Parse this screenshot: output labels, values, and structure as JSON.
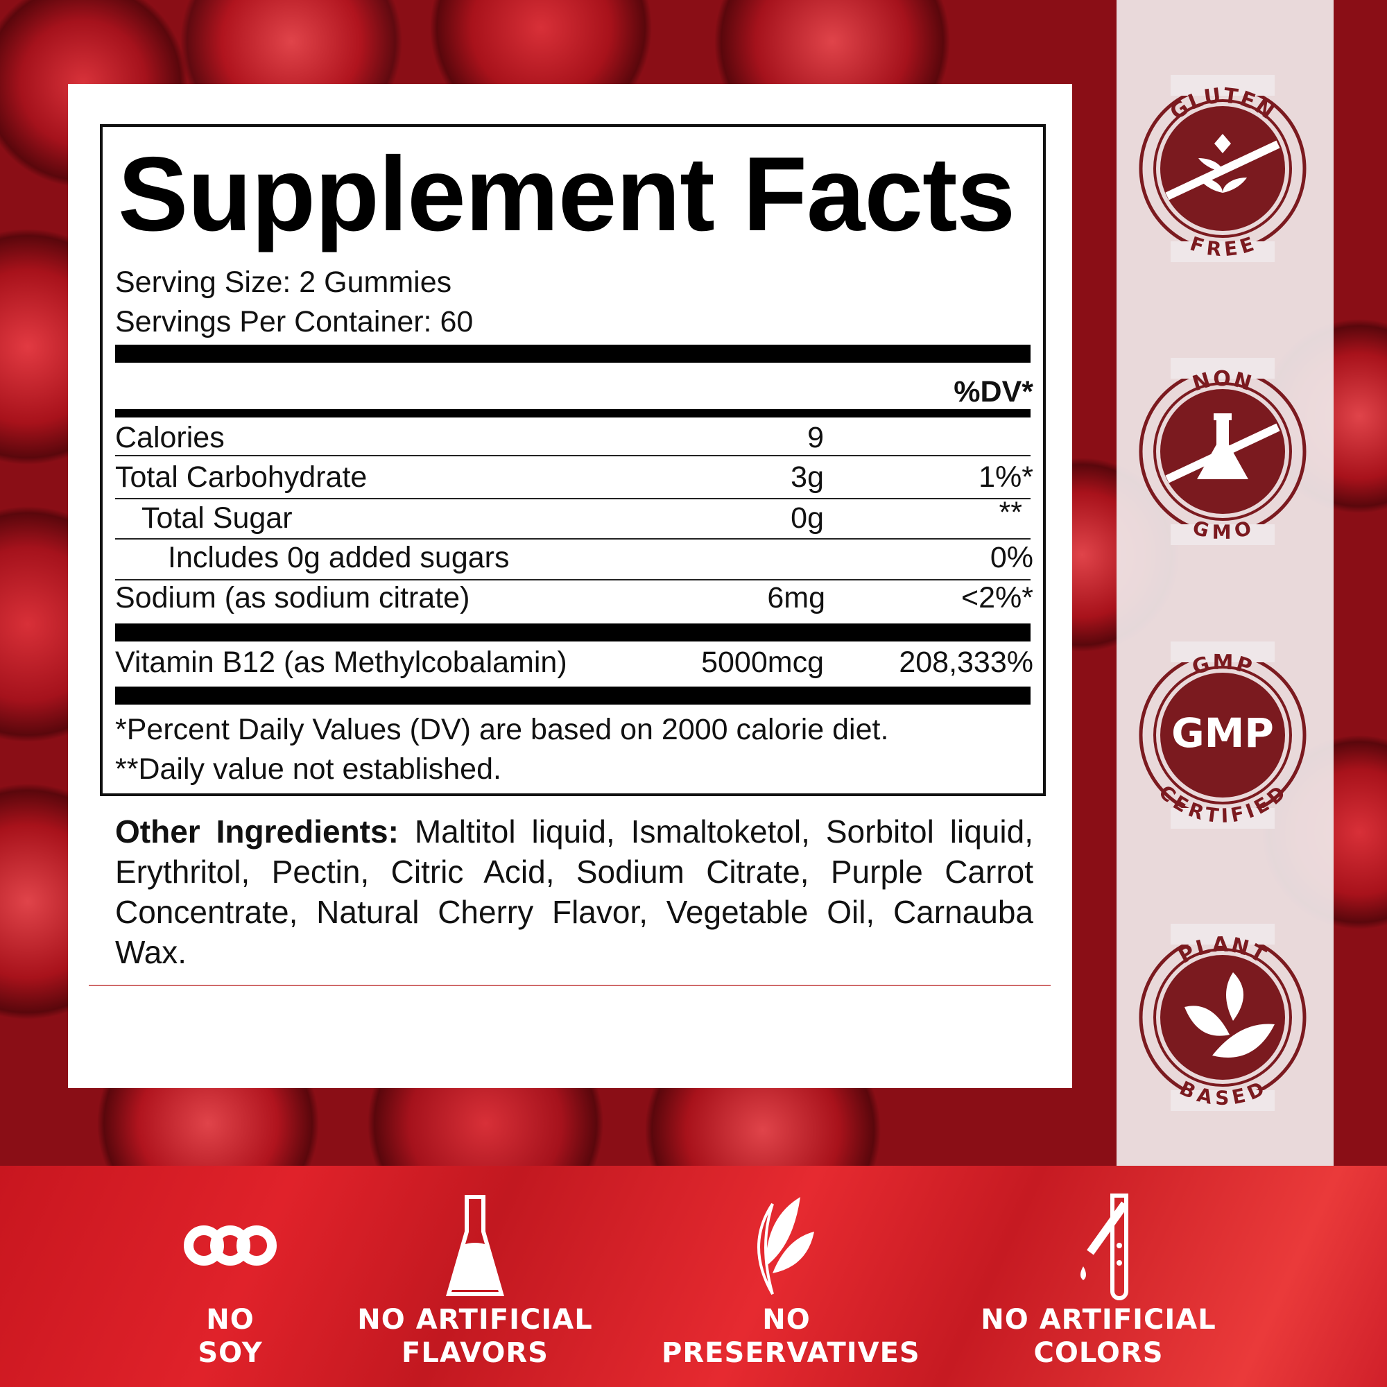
{
  "facts": {
    "title": "Supplement Facts",
    "serving_size": "Serving Size: 2 Gummies",
    "servings_per_container": "Servings Per Container: 60",
    "dv_header": "%DV*",
    "rows": [
      {
        "name": "Calories",
        "amount": "9",
        "dv": ""
      },
      {
        "name": "Total Carbohydrate",
        "amount": "3g",
        "dv": "1%*"
      },
      {
        "name": "Total Sugar",
        "amount": "0g",
        "dv": "**"
      },
      {
        "name": "Includes 0g added sugars",
        "amount": "",
        "dv": "0%"
      },
      {
        "name": "Sodium (as sodium citrate)",
        "amount": "6mg",
        "dv": "<2%*"
      },
      {
        "name": "Vitamin B12 (as Methylcobalamin)",
        "amount": "5000mcg",
        "dv": "208,333%"
      }
    ],
    "footnote1": "*Percent Daily Values (DV) are based on 2000 calorie diet.",
    "footnote2": "**Daily value not established."
  },
  "ingredients": {
    "label": "Other Ingredients:",
    "text": " Maltitol liquid, Ismaltoketol, Sorbitol liquid, Erythritol, Pectin, Citric Acid, Sodium Citrate, Purple Carrot Concentrate, Natural Cherry Flavor, Vegetable Oil, Carnauba Wax."
  },
  "badges": [
    {
      "top": "GLUTEN",
      "bottom": "FREE",
      "icon": "wheat-icon"
    },
    {
      "top": "NON",
      "bottom": "GMO",
      "icon": "flask-icon"
    },
    {
      "top": "GMP",
      "bottom": "CERTIFIED",
      "center": "GMP"
    },
    {
      "top": "PLANT",
      "bottom": "BASED",
      "icon": "leaves-icon"
    }
  ],
  "features": [
    {
      "line1": "NO",
      "line2": "SOY",
      "icon": "soybean-icon"
    },
    {
      "line1": "NO ARTIFICIAL",
      "line2": "FLAVORS",
      "icon": "flask-icon"
    },
    {
      "line1": "NO",
      "line2": "PRESERVATIVES",
      "icon": "leaf-icon"
    },
    {
      "line1": "NO ARTIFICIAL",
      "line2": "COLORS",
      "icon": "dropper-test-tube-icon"
    }
  ],
  "colors": {
    "badge": "#7b1a1f",
    "band": "#d81e26",
    "panel": "#efe7e9"
  }
}
